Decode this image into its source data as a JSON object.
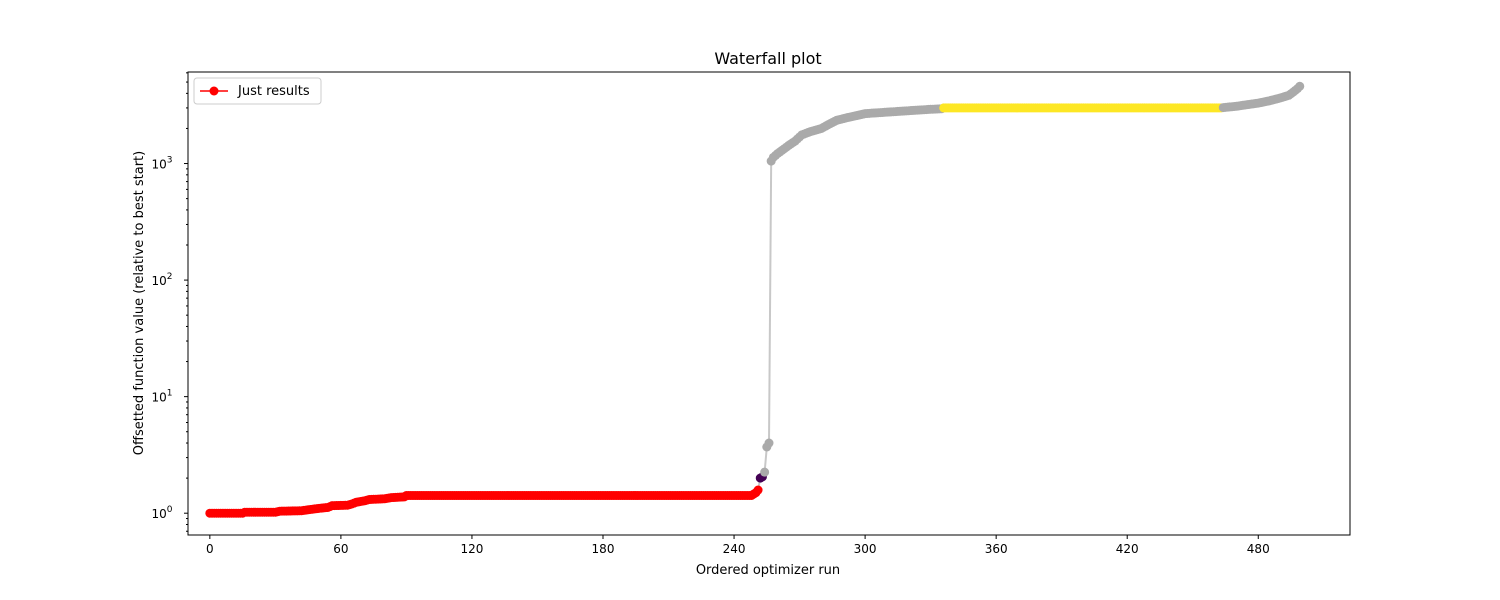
{
  "chart_data": {
    "type": "scatter",
    "title": "Waterfall plot",
    "xlabel": "Ordered optimizer run",
    "ylabel": "Offsetted function value (relative to best start)",
    "xlim": [
      -10,
      522
    ],
    "ylim": [
      0.65,
      6100
    ],
    "yscale": "log",
    "xticks": [
      0,
      60,
      120,
      180,
      240,
      300,
      360,
      420,
      480
    ],
    "yticks": [
      {
        "value": 1,
        "base": "10",
        "exp": "0"
      },
      {
        "value": 10,
        "base": "10",
        "exp": "1"
      },
      {
        "value": 100,
        "base": "10",
        "exp": "2"
      },
      {
        "value": 1000,
        "base": "10",
        "exp": "3"
      }
    ],
    "grid": false,
    "legend": {
      "position": "top-left",
      "entries": [
        {
          "label": "Just results",
          "color": "#ff0000"
        }
      ]
    },
    "line_color": "#c8c8c8",
    "series": [
      {
        "name": "Just results",
        "color": "#ff0000",
        "points": [
          [
            0,
            1.0
          ],
          [
            15,
            1.0
          ],
          [
            16,
            1.02
          ],
          [
            30,
            1.02
          ],
          [
            32,
            1.04
          ],
          [
            42,
            1.05
          ],
          [
            45,
            1.07
          ],
          [
            50,
            1.1
          ],
          [
            54,
            1.12
          ],
          [
            56,
            1.16
          ],
          [
            63,
            1.17
          ],
          [
            65,
            1.2
          ],
          [
            67,
            1.24
          ],
          [
            71,
            1.28
          ],
          [
            73,
            1.31
          ],
          [
            80,
            1.33
          ],
          [
            83,
            1.36
          ],
          [
            89,
            1.38
          ],
          [
            90,
            1.42
          ],
          [
            120,
            1.42
          ],
          [
            180,
            1.42
          ],
          [
            248,
            1.42
          ],
          [
            250,
            1.5
          ],
          [
            251,
            1.58
          ]
        ]
      },
      {
        "color": "#440154",
        "points": [
          [
            252,
            2.0
          ],
          [
            253,
            2.05
          ]
        ]
      },
      {
        "color": "#aaaaaa",
        "points": [
          [
            254,
            2.25
          ],
          [
            255,
            3.7
          ],
          [
            256,
            4.0
          ],
          [
            257,
            1050
          ],
          [
            258,
            1130
          ],
          [
            260,
            1220
          ],
          [
            263,
            1340
          ],
          [
            265,
            1430
          ],
          [
            268,
            1560
          ],
          [
            271,
            1760
          ],
          [
            275,
            1880
          ],
          [
            280,
            2000
          ],
          [
            283,
            2150
          ],
          [
            287,
            2350
          ],
          [
            292,
            2480
          ],
          [
            297,
            2600
          ],
          [
            300,
            2680
          ],
          [
            310,
            2760
          ],
          [
            320,
            2840
          ],
          [
            330,
            2920
          ],
          [
            335,
            2950
          ]
        ]
      },
      {
        "color": "#fde725",
        "points": [
          [
            336,
            3000
          ],
          [
            400,
            3000
          ],
          [
            463,
            3000
          ]
        ]
      },
      {
        "color": "#aaaaaa",
        "points": [
          [
            464,
            3020
          ],
          [
            470,
            3100
          ],
          [
            475,
            3200
          ],
          [
            480,
            3300
          ],
          [
            485,
            3450
          ],
          [
            490,
            3650
          ],
          [
            494,
            3850
          ],
          [
            496,
            4100
          ],
          [
            498,
            4400
          ],
          [
            499,
            4600
          ]
        ]
      }
    ]
  }
}
